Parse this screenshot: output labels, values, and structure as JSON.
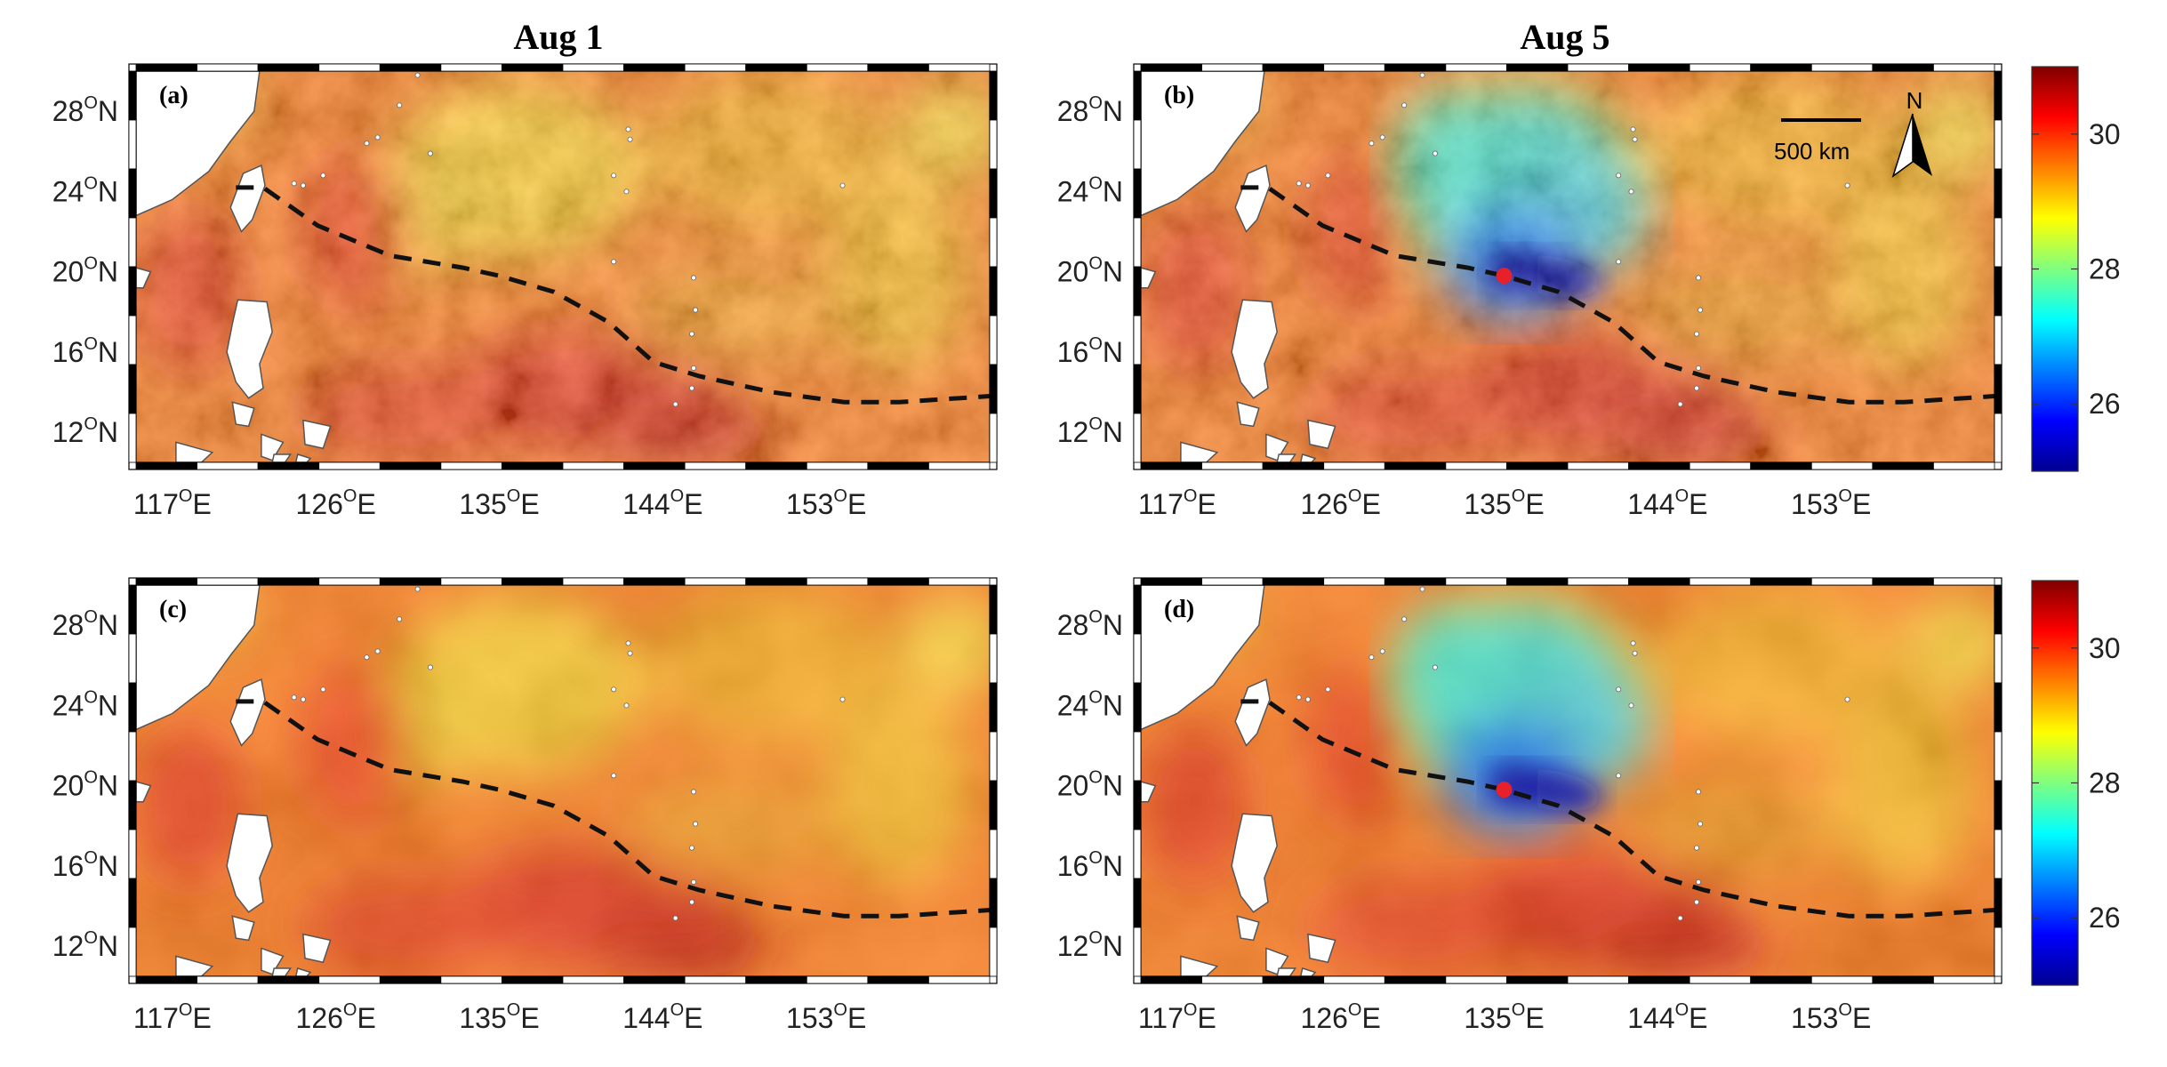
{
  "columns": [
    {
      "title": "Aug 1"
    },
    {
      "title": "Aug 5"
    }
  ],
  "panels": [
    {
      "label": "(a)",
      "field": "sst",
      "show_cooling": false,
      "show_marker": false,
      "show_scalebar": false
    },
    {
      "label": "(b)",
      "field": "sst",
      "show_cooling": true,
      "show_marker": true,
      "show_scalebar": true
    },
    {
      "label": "(c)",
      "field": "sst_smooth",
      "show_cooling": false,
      "show_marker": false,
      "show_scalebar": false
    },
    {
      "label": "(d)",
      "field": "sst_smooth",
      "show_cooling": true,
      "show_marker": true,
      "show_scalebar": false
    }
  ],
  "axes": {
    "lon_ticks": [
      {
        "value": 117,
        "label": "117",
        "suffix": "E"
      },
      {
        "value": 126,
        "label": "126",
        "suffix": "E"
      },
      {
        "value": 135,
        "label": "135",
        "suffix": "E"
      },
      {
        "value": 144,
        "label": "144",
        "suffix": "E"
      },
      {
        "value": 153,
        "label": "153",
        "suffix": "E"
      }
    ],
    "lat_ticks": [
      {
        "value": 12,
        "label": "12",
        "suffix": "N"
      },
      {
        "value": 16,
        "label": "16",
        "suffix": "N"
      },
      {
        "value": 20,
        "label": "20",
        "suffix": "N"
      },
      {
        "value": 24,
        "label": "24",
        "suffix": "N"
      },
      {
        "value": 28,
        "label": "28",
        "suffix": "N"
      }
    ],
    "degree_symbol": "O",
    "lon_range": [
      115,
      162
    ],
    "lat_range": [
      10.5,
      30
    ]
  },
  "colorbar": {
    "colormap": "jet",
    "range": [
      25,
      31
    ],
    "ticks": [
      {
        "value": 26,
        "label": "26"
      },
      {
        "value": 28,
        "label": "28"
      },
      {
        "value": 30,
        "label": "30"
      }
    ]
  },
  "track": {
    "style": "dashed",
    "color": "#111111",
    "points": [
      {
        "lon": 120.5,
        "lat": 24.2
      },
      {
        "lon": 122.0,
        "lat": 24.2
      },
      {
        "lon": 125.0,
        "lat": 22.3
      },
      {
        "lon": 129.0,
        "lat": 20.8
      },
      {
        "lon": 133.0,
        "lat": 20.2
      },
      {
        "lon": 135.0,
        "lat": 19.8
      },
      {
        "lon": 138.0,
        "lat": 19.0
      },
      {
        "lon": 141.0,
        "lat": 17.5
      },
      {
        "lon": 143.5,
        "lat": 15.5
      },
      {
        "lon": 146.0,
        "lat": 14.8
      },
      {
        "lon": 150.0,
        "lat": 14.0
      },
      {
        "lon": 154.0,
        "lat": 13.5
      },
      {
        "lon": 157.0,
        "lat": 13.5
      },
      {
        "lon": 162.0,
        "lat": 13.8
      }
    ]
  },
  "marker": {
    "lon": 135.0,
    "lat": 19.8,
    "color": "#e8202a"
  },
  "scalebar": {
    "label": "500 km"
  },
  "north_arrow": {
    "label": "N"
  },
  "colors": {
    "land": "#ffffff",
    "coast": "#555555"
  }
}
